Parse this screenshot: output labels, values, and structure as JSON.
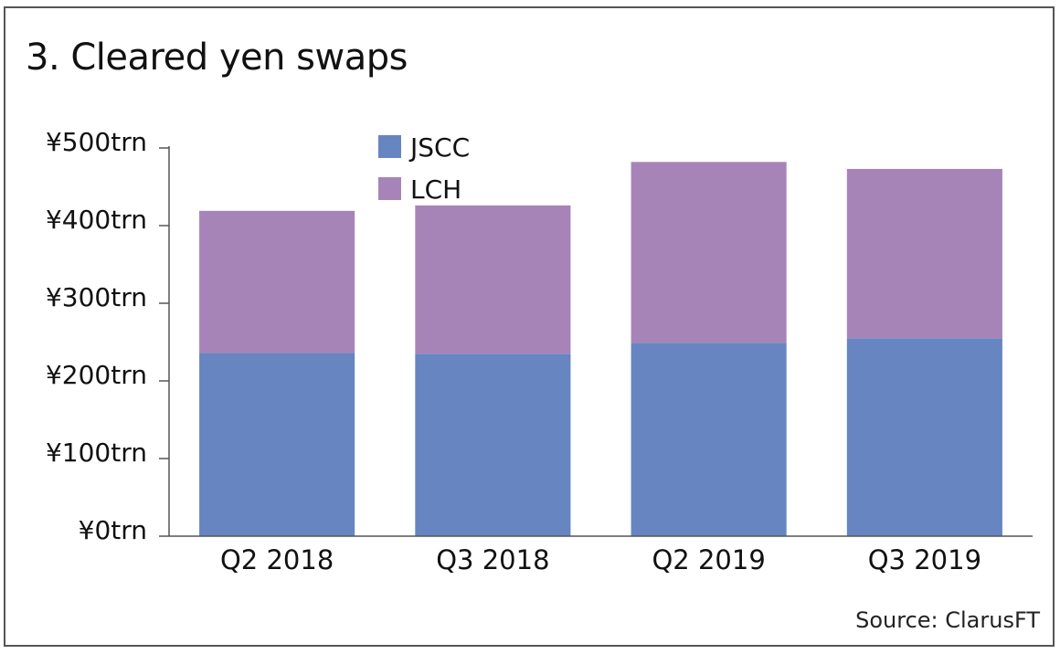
{
  "chart_data": {
    "type": "bar",
    "stacked": true,
    "title": "3. Cleared yen swaps",
    "source": "Source: ClarusFT",
    "categories": [
      "Q2 2018",
      "Q3 2018",
      "Q2 2019",
      "Q3 2019"
    ],
    "series": [
      {
        "name": "JSCC",
        "values": [
          236,
          235,
          249,
          255
        ]
      },
      {
        "name": "LCH",
        "values": [
          183,
          191,
          233,
          218
        ]
      }
    ],
    "y_ticks": [
      0,
      100,
      200,
      300,
      400,
      500
    ],
    "y_tick_labels": [
      "¥0trn",
      "¥100trn",
      "¥200trn",
      "¥300trn",
      "¥400trn",
      "¥500trn"
    ],
    "ylim": [
      0,
      500
    ],
    "legend": "top-center",
    "grid": false,
    "colors": {
      "JSCC": "#6785c1",
      "LCH": "#a784b8",
      "axis": "#555555",
      "frame": "#555555"
    }
  }
}
